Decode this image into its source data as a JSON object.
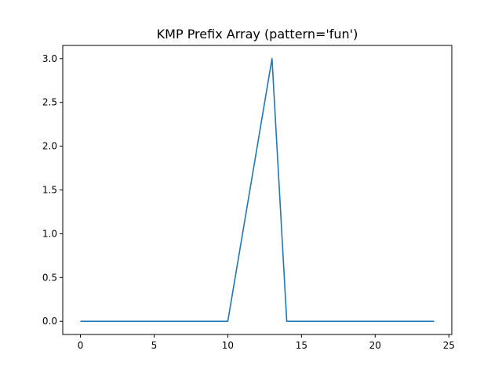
{
  "chart_data": {
    "type": "line",
    "title": "KMP Prefix Array (pattern='fun')",
    "xlabel": "",
    "ylabel": "",
    "xlim": [
      -1.2,
      25.2
    ],
    "ylim": [
      -0.15,
      3.15
    ],
    "xticks": [
      0,
      5,
      10,
      15,
      20,
      25
    ],
    "xtick_labels": [
      "0",
      "5",
      "10",
      "15",
      "20",
      "25"
    ],
    "yticks": [
      0.0,
      0.5,
      1.0,
      1.5,
      2.0,
      2.5,
      3.0
    ],
    "ytick_labels": [
      "0.0",
      "0.5",
      "1.0",
      "1.5",
      "2.0",
      "2.5",
      "3.0"
    ],
    "grid": false,
    "legend": "none",
    "series": [
      {
        "color": "#1f77b4",
        "x": [
          0,
          1,
          2,
          3,
          4,
          5,
          6,
          7,
          8,
          9,
          10,
          11,
          12,
          13,
          14,
          15,
          16,
          17,
          18,
          19,
          20,
          21,
          22,
          23,
          24
        ],
        "y": [
          0,
          0,
          0,
          0,
          0,
          0,
          0,
          0,
          0,
          0,
          0,
          1,
          2,
          3,
          0,
          0,
          0,
          0,
          0,
          0,
          0,
          0,
          0,
          0,
          0
        ]
      }
    ]
  }
}
